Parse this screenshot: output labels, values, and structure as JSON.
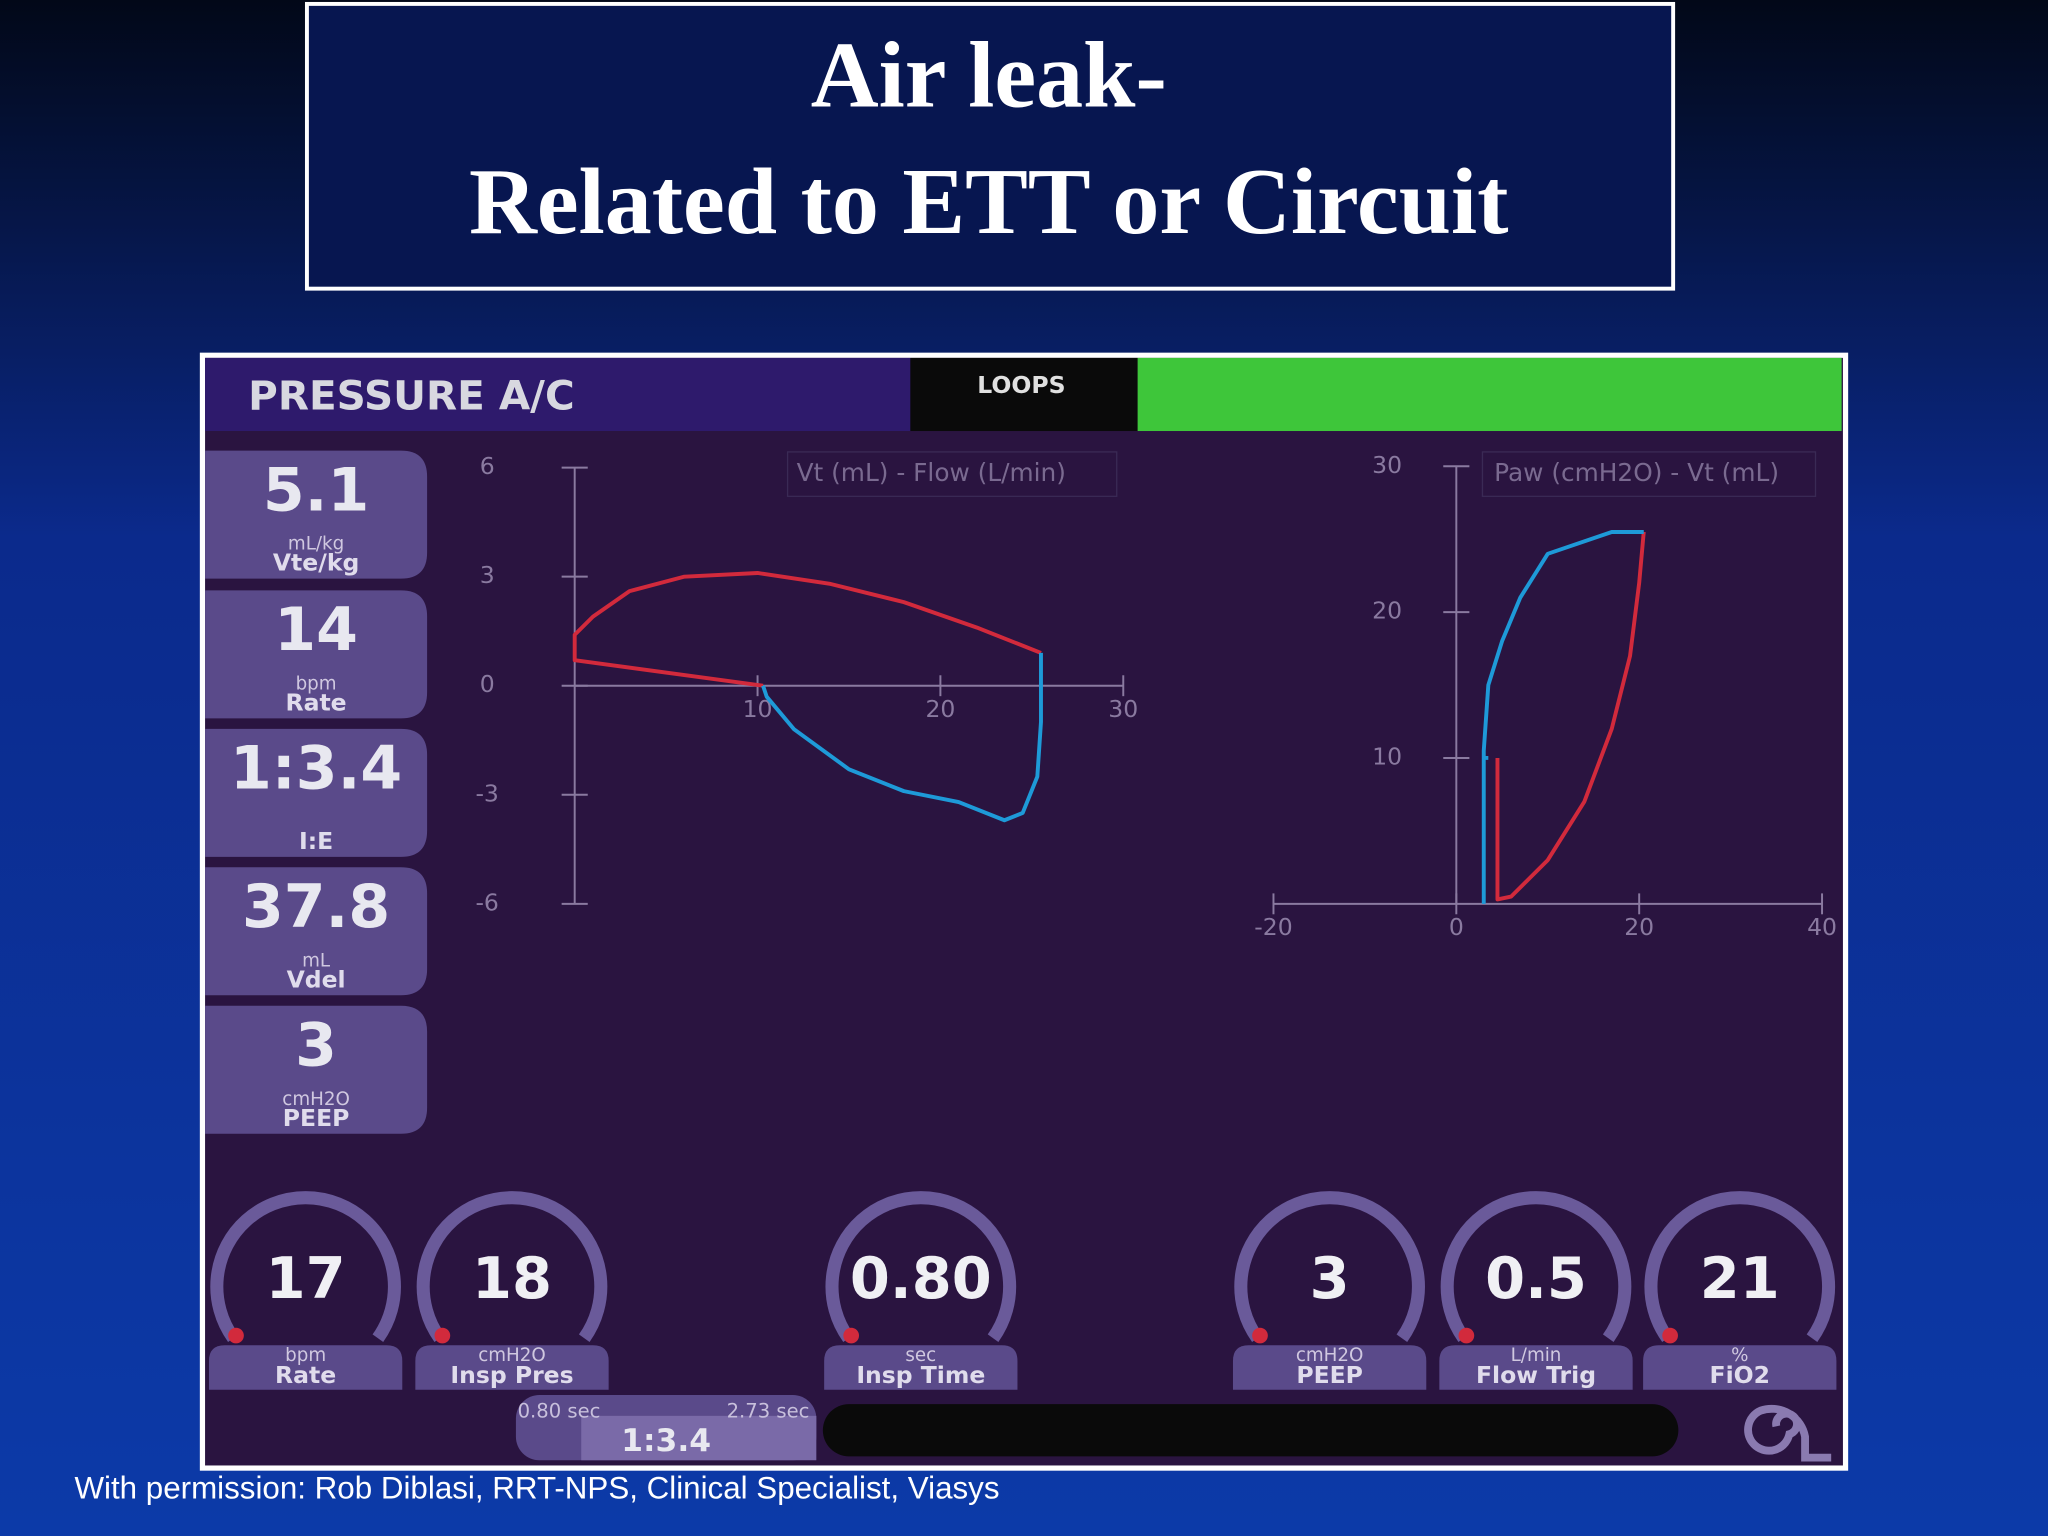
{
  "slide": {
    "title_lines": [
      "Air leak-",
      "Related to ETT or Circuit"
    ],
    "credit": "With permission: Rob Diblasi, RRT-NPS, Clinical Specialist, Viasys"
  },
  "screen": {
    "mode": "PRESSURE A/C",
    "tab": "LOOPS",
    "monitors": [
      {
        "value": "5.1",
        "unit": "mL/kg",
        "label": "Vte/kg"
      },
      {
        "value": "14",
        "unit": "bpm",
        "label": "Rate"
      },
      {
        "value": "1:3.4",
        "label": "I:E"
      },
      {
        "value": "37.8",
        "unit": "mL",
        "label": "Vdel"
      },
      {
        "value": "3",
        "unit": "cmH2O",
        "label": "PEEP"
      }
    ],
    "controls": [
      {
        "value": "17",
        "unit": "bpm",
        "label": "Rate"
      },
      {
        "value": "18",
        "unit": "cmH2O",
        "label": "Insp Pres"
      },
      {
        "value": "0.80",
        "unit": "sec",
        "label": "Insp Time"
      },
      {
        "value": "3",
        "unit": "cmH2O",
        "label": "PEEP"
      },
      {
        "value": "0.5",
        "unit": "L/min",
        "label": "Flow Trig"
      },
      {
        "value": "21",
        "unit": "%",
        "label": "FiO2"
      }
    ],
    "timing": {
      "insp": "0.80 sec",
      "exp": "2.73 sec",
      "ratio": "1:3.4"
    }
  },
  "chart_data": [
    {
      "type": "line",
      "title": "Vt (mL) - Flow (L/min)",
      "xlim": [
        0,
        30
      ],
      "xticks": [
        10,
        20,
        30
      ],
      "ylim": [
        -6,
        6
      ],
      "yticks": [
        -6,
        -3,
        0,
        3,
        6
      ],
      "series": [
        {
          "color": "#d22a3c",
          "x": [
            10.3,
            0,
            0,
            1,
            3,
            6,
            10,
            14,
            18,
            22,
            25.5
          ],
          "values": [
            0,
            0.7,
            1.4,
            1.9,
            2.6,
            3.0,
            3.1,
            2.8,
            2.3,
            1.6,
            0.9
          ]
        },
        {
          "color": "#1e9ad8",
          "x": [
            25.5,
            25.5,
            25.3,
            24.5,
            23.5,
            21,
            18,
            15,
            12,
            10.5,
            10.3
          ],
          "values": [
            0.9,
            -1,
            -2.5,
            -3.5,
            -3.7,
            -3.2,
            -2.9,
            -2.3,
            -1.2,
            -0.3,
            0
          ]
        }
      ]
    },
    {
      "type": "line",
      "title": "Paw (cmH2O) - Vt (mL)",
      "xlim": [
        -20,
        40
      ],
      "xticks": [
        -20,
        0,
        20,
        40
      ],
      "ylim": [
        0,
        30
      ],
      "yticks": [
        10,
        20,
        30
      ],
      "series": [
        {
          "color": "#d22a3c",
          "x": [
            4.5,
            4.5,
            6,
            10,
            14,
            17,
            19,
            20,
            20.5
          ],
          "values": [
            10,
            0.3,
            0.5,
            3,
            7,
            12,
            17,
            22,
            25.5
          ]
        },
        {
          "color": "#1e9ad8",
          "x": [
            20.5,
            17,
            10,
            7,
            5,
            3.5,
            3,
            3,
            3.5,
            null,
            3,
            3
          ],
          "values": [
            25.5,
            25.5,
            24,
            21,
            18,
            15,
            10.5,
            10,
            10,
            null,
            0,
            10
          ]
        }
      ]
    }
  ]
}
